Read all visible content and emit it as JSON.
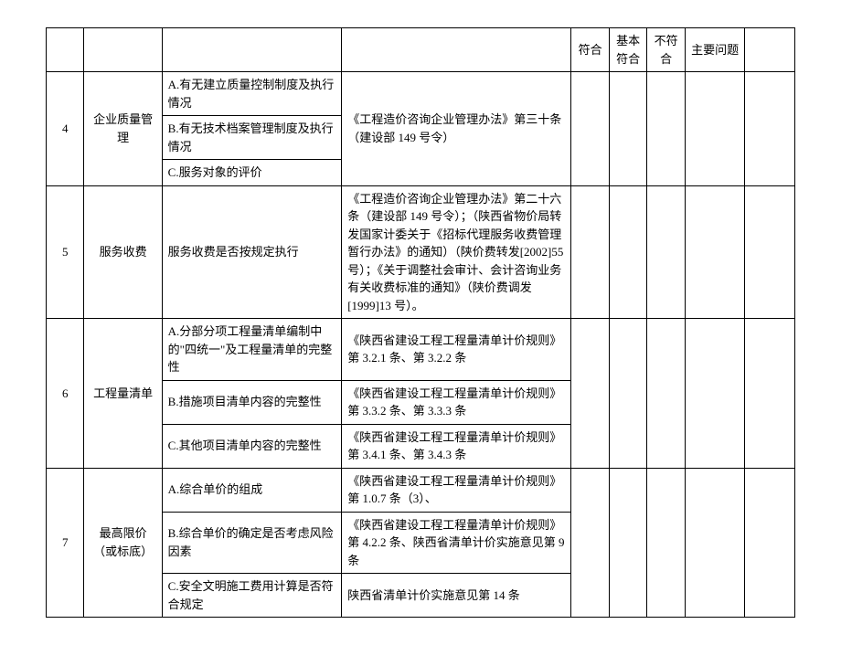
{
  "headers": {
    "h1": "符合",
    "h2": "基本符合",
    "h3": "不符合",
    "h4": "主要问题"
  },
  "rows": {
    "r4": {
      "num": "4",
      "cat": "企业质量管理",
      "a": "A.有无建立质量控制制度及执行情况",
      "b": "B.有无技术档案管理制度及执行情况",
      "c": "C.服务对象的评价",
      "basis": "《工程造价咨询企业管理办法》第三十条（建设部 149 号令）"
    },
    "r5": {
      "num": "5",
      "cat": "服务收费",
      "item": "服务收费是否按规定执行",
      "basis": "《工程造价咨询企业管理办法》第二十六条（建设部 149 号令）；（陕西省物价局转发国家计委关于《招标代理服务收费管理暂行办法》的通知）（陕价费转发[2002]55 号）；《关于调整社会审计、会计咨询业务有关收费标准的通知》（陕价费调发[1999]13 号）。"
    },
    "r6": {
      "num": "6",
      "cat": "工程量清单",
      "a": "A.分部分项工程量清单编制中的\"四统一\"及工程量清单的完整性",
      "a_basis": "《陕西省建设工程工程量清单计价规则》第 3.2.1 条、第 3.2.2 条",
      "b": "B.措施项目清单内容的完整性",
      "b_basis": "《陕西省建设工程工程量清单计价规则》第 3.3.2 条、第 3.3.3 条",
      "c": "C.其他项目清单内容的完整性",
      "c_basis": "《陕西省建设工程工程量清单计价规则》第 3.4.1 条、第 3.4.3 条"
    },
    "r7": {
      "num": "7",
      "cat": "最高限价（或标底）",
      "a": "A.综合单价的组成",
      "a_basis": "《陕西省建设工程工程量清单计价规则》第 1.0.7 条（3）、",
      "b": "B.综合单价的确定是否考虑风险因素",
      "b_basis": "《陕西省建设工程工程量清单计价规则》第 4.2.2 条、陕西省清单计价实施意见第 9 条",
      "c": "C.安全文明施工费用计算是否符合规定",
      "c_basis": "陕西省清单计价实施意见第 14 条"
    }
  }
}
